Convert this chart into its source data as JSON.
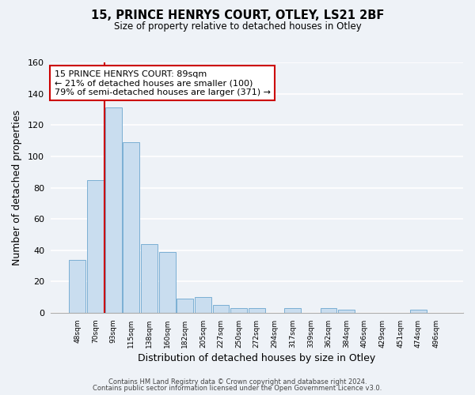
{
  "title_line1": "15, PRINCE HENRYS COURT, OTLEY, LS21 2BF",
  "title_line2": "Size of property relative to detached houses in Otley",
  "xlabel": "Distribution of detached houses by size in Otley",
  "ylabel": "Number of detached properties",
  "bin_labels": [
    "48sqm",
    "70sqm",
    "93sqm",
    "115sqm",
    "138sqm",
    "160sqm",
    "182sqm",
    "205sqm",
    "227sqm",
    "250sqm",
    "272sqm",
    "294sqm",
    "317sqm",
    "339sqm",
    "362sqm",
    "384sqm",
    "406sqm",
    "429sqm",
    "451sqm",
    "474sqm",
    "496sqm"
  ],
  "bar_values": [
    34,
    85,
    131,
    109,
    44,
    39,
    9,
    10,
    5,
    3,
    3,
    0,
    3,
    0,
    3,
    2,
    0,
    0,
    0,
    2,
    0
  ],
  "bar_color": "#c9ddef",
  "bar_edge_color": "#7aafd4",
  "ylim": [
    0,
    160
  ],
  "yticks": [
    0,
    20,
    40,
    60,
    80,
    100,
    120,
    140,
    160
  ],
  "vline_color": "#cc0000",
  "annotation_title": "15 PRINCE HENRYS COURT: 89sqm",
  "annotation_line1": "← 21% of detached houses are smaller (100)",
  "annotation_line2": "79% of semi-detached houses are larger (371) →",
  "annotation_box_color": "#ffffff",
  "annotation_box_edge": "#cc0000",
  "footer_line1": "Contains HM Land Registry data © Crown copyright and database right 2024.",
  "footer_line2": "Contains public sector information licensed under the Open Government Licence v3.0.",
  "background_color": "#eef2f7",
  "grid_color": "#ffffff"
}
